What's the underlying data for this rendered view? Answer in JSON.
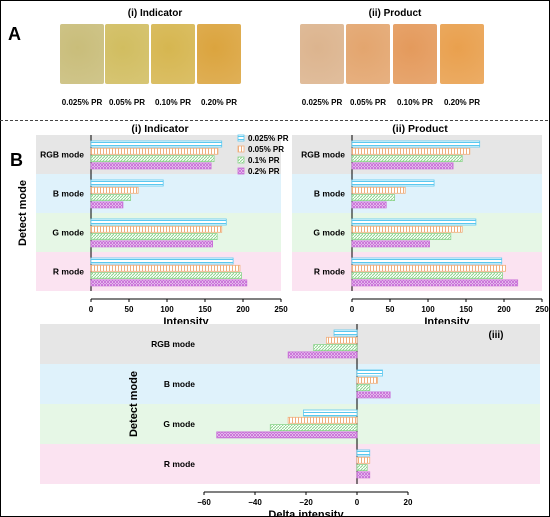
{
  "panelA": {
    "label": "A",
    "indicator": {
      "title": "(i) Indicator",
      "swatches": [
        {
          "label": "0.025% PR",
          "color": "#c9bd7a"
        },
        {
          "label": "0.05% PR",
          "color": "#d1bd60"
        },
        {
          "label": "0.10% PR",
          "color": "#d6b650"
        },
        {
          "label": "0.20% PR",
          "color": "#dba43e"
        }
      ]
    },
    "product": {
      "title": "(ii) Product",
      "swatches": [
        {
          "label": "0.025% PR",
          "color": "#dcb48e"
        },
        {
          "label": "0.05% PR",
          "color": "#e3a56e"
        },
        {
          "label": "0.10% PR",
          "color": "#e49a5c"
        },
        {
          "label": "0.20% PR",
          "color": "#e9a04e"
        }
      ]
    }
  },
  "panelB": {
    "label": "B"
  },
  "colors": {
    "series": [
      "#5bc8ef",
      "#f0ae7c",
      "#8cd48c",
      "#c86fd8"
    ],
    "bands": [
      "#e6e6e6",
      "#dff2fb",
      "#e6f7e6",
      "#fbe3f1"
    ]
  },
  "chart_data": [
    {
      "type": "bar",
      "orientation": "horizontal",
      "title": "(i) Indicator",
      "xlabel": "Intensity",
      "ylabel": "Detect mode",
      "categories": [
        "RGB mode",
        "B mode",
        "G mode",
        "R mode"
      ],
      "xlim": [
        0,
        250
      ],
      "xticks": [
        "0",
        "50",
        "100",
        "150",
        "200",
        "250"
      ],
      "legend_position": "top-right",
      "series": [
        {
          "name": "0.025% PR",
          "values": [
            172,
            95,
            178,
            187
          ]
        },
        {
          "name": "0.05% PR",
          "values": [
            167,
            62,
            172,
            196
          ]
        },
        {
          "name": "0.1% PR",
          "values": [
            162,
            52,
            166,
            198
          ]
        },
        {
          "name": "0.2% PR",
          "values": [
            158,
            42,
            160,
            205
          ]
        }
      ]
    },
    {
      "type": "bar",
      "orientation": "horizontal",
      "title": "(ii) Product",
      "xlabel": "Intensity",
      "ylabel": "",
      "categories": [
        "RGB mode",
        "B mode",
        "G mode",
        "R mode"
      ],
      "xlim": [
        0,
        250
      ],
      "xticks": [
        "0",
        "50",
        "100",
        "150",
        "200",
        "250"
      ],
      "series": [
        {
          "name": "0.025% PR",
          "values": [
            168,
            108,
            163,
            197
          ]
        },
        {
          "name": "0.05% PR",
          "values": [
            155,
            70,
            145,
            202
          ]
        },
        {
          "name": "0.1% PR",
          "values": [
            145,
            56,
            130,
            198
          ]
        },
        {
          "name": "0.2% PR",
          "values": [
            133,
            45,
            102,
            218
          ]
        }
      ]
    },
    {
      "type": "bar",
      "orientation": "horizontal",
      "title": "(iii)",
      "xlabel": "Delta intensity",
      "ylabel": "Detect mode",
      "categories": [
        "RGB mode",
        "B mode",
        "G mode",
        "R mode"
      ],
      "xlim": [
        -60,
        20
      ],
      "xticks": [
        "−60",
        "−40",
        "−20",
        "0",
        "20"
      ],
      "series": [
        {
          "name": "0.025% PR",
          "values": [
            -9,
            10,
            -21,
            5
          ]
        },
        {
          "name": "0.05% PR",
          "values": [
            -12,
            8,
            -27,
            5
          ]
        },
        {
          "name": "0.1% PR",
          "values": [
            -17,
            5,
            -34,
            4
          ]
        },
        {
          "name": "0.2% PR",
          "values": [
            -27,
            13,
            -55,
            5
          ]
        }
      ]
    }
  ]
}
